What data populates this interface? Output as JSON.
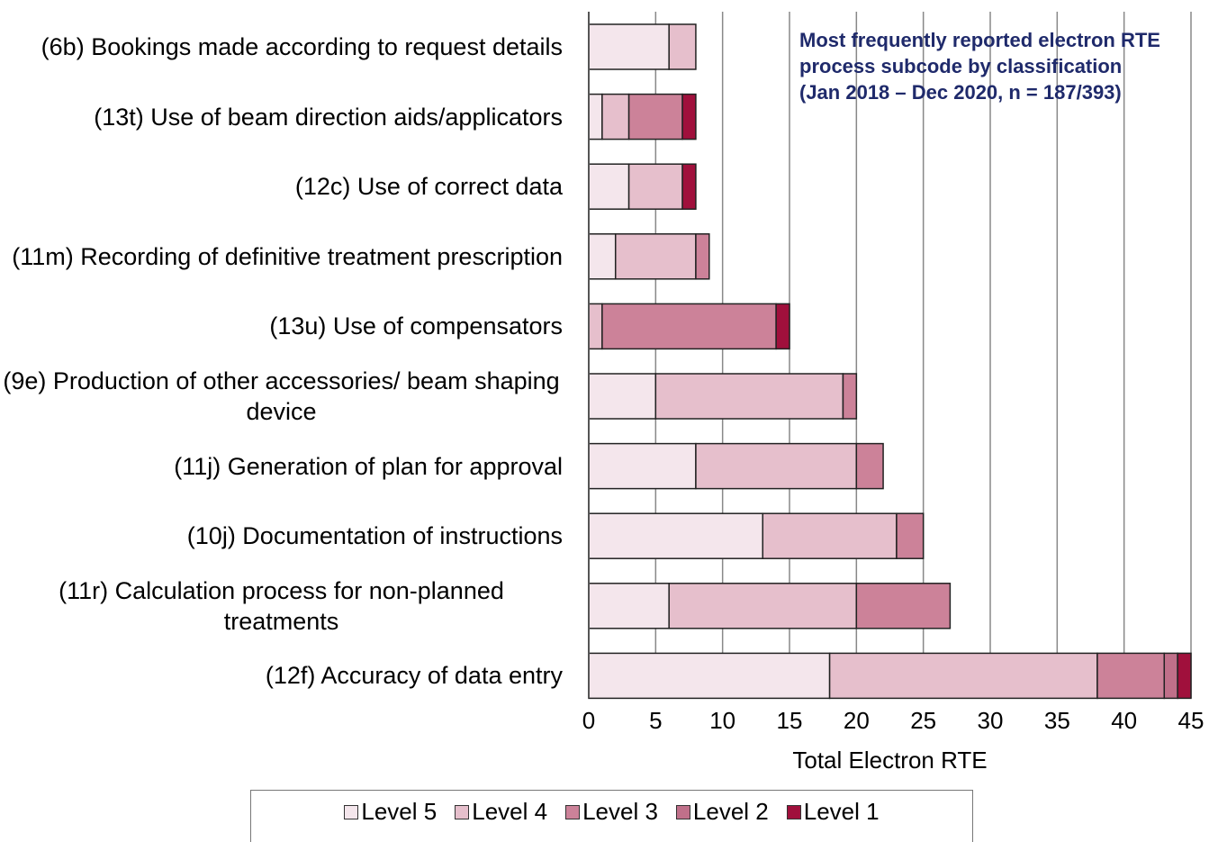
{
  "chart_data": {
    "type": "stacked_barh",
    "title": "Most frequently reported electron RTE process subcode by classification",
    "subtitle": "(Jan 2018 – Dec 2020, n = 187/393)",
    "xlabel": "Total Electron RTE",
    "categories": [
      "(6b) Bookings made according to request details",
      "(13t) Use of beam direction aids/applicators",
      "(12c) Use of correct data",
      "(11m) Recording of definitive treatment prescription",
      "(13u) Use of compensators",
      "(9e) Production of other accessories/ beam shaping device",
      "(11j) Generation of plan for approval",
      "(10j) Documentation of instructions",
      "(11r) Calculation process for non-planned treatments",
      "(12f) Accuracy of data entry"
    ],
    "series": [
      {
        "name": "Level 5",
        "color": "#f4e6ec",
        "values": [
          6,
          1,
          3,
          2,
          0,
          5,
          8,
          13,
          6,
          18
        ]
      },
      {
        "name": "Level 4",
        "color": "#e6bfcc",
        "values": [
          2,
          2,
          4,
          6,
          1,
          14,
          12,
          10,
          14,
          20
        ]
      },
      {
        "name": "Level 3",
        "color": "#cc8299",
        "values": [
          0,
          4,
          0,
          1,
          13,
          1,
          2,
          2,
          7,
          5
        ]
      },
      {
        "name": "Level 2",
        "color": "#c0708a",
        "values": [
          0,
          0,
          0,
          0,
          0,
          0,
          0,
          0,
          0,
          1
        ]
      },
      {
        "name": "Level 1",
        "color": "#a0103c",
        "values": [
          0,
          1,
          1,
          0,
          1,
          0,
          0,
          0,
          0,
          1
        ]
      }
    ],
    "xlim": [
      0,
      45
    ],
    "xticks": [
      0,
      5,
      10,
      15,
      20,
      25,
      30,
      35,
      40,
      45
    ],
    "grid": true,
    "legend": "bottom"
  }
}
